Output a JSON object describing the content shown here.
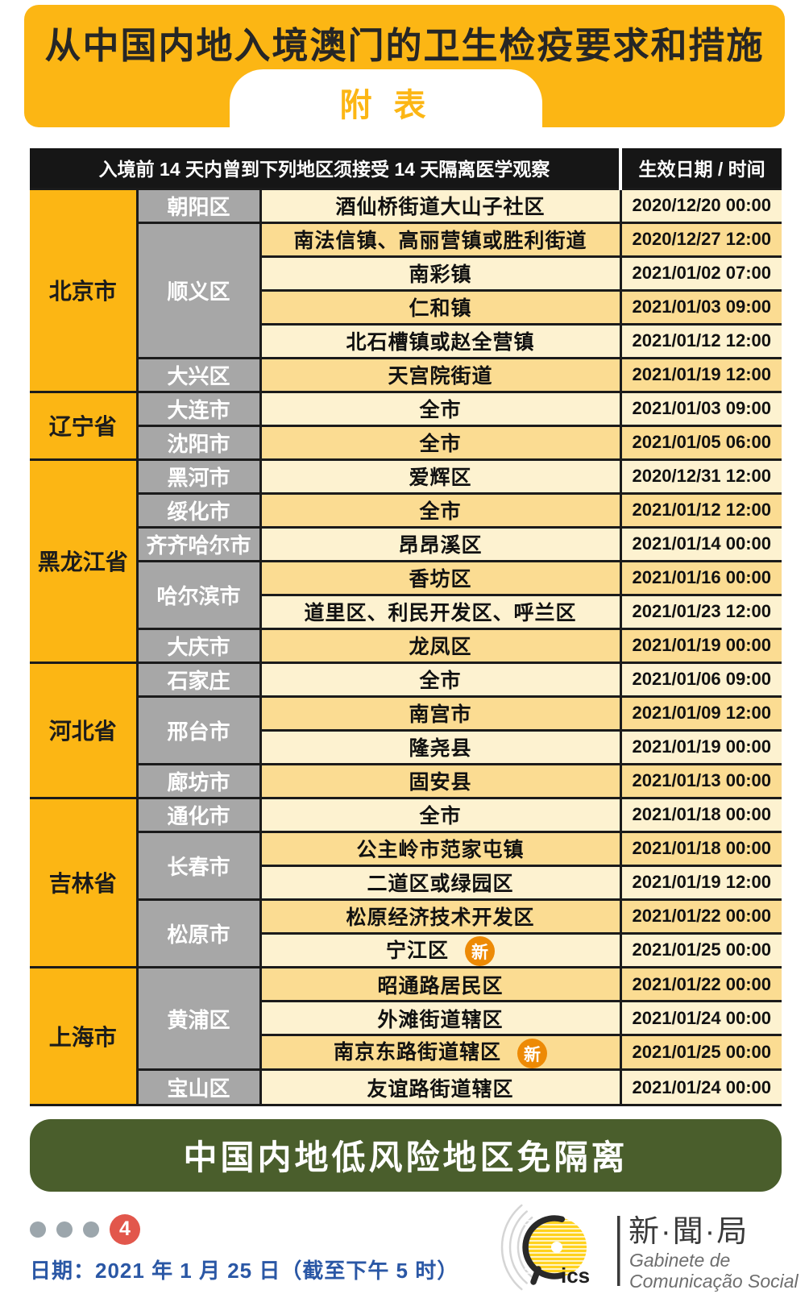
{
  "header": {
    "title": "从中国内地入境澳门的卫生检疫要求和措施",
    "tab_label": "附 表"
  },
  "table": {
    "header_left": "入境前 14 天内曾到下列地区须接受 14 天隔离医学观察",
    "header_right": "生效日期 / 时间",
    "new_badge_label": "新",
    "groups": [
      {
        "province": "北京市",
        "districts": [
          {
            "name": "朝阳区",
            "areas": [
              {
                "area": "酒仙桥街道大山子社区",
                "date": "2020/12/20 00:00"
              }
            ]
          },
          {
            "name": "顺义区",
            "areas": [
              {
                "area": "南法信镇、高丽营镇或胜利街道",
                "date": "2020/12/27 12:00"
              },
              {
                "area": "南彩镇",
                "date": "2021/01/02 07:00"
              },
              {
                "area": "仁和镇",
                "date": "2021/01/03 09:00"
              },
              {
                "area": "北石槽镇或赵全营镇",
                "date": "2021/01/12 12:00"
              }
            ]
          },
          {
            "name": "大兴区",
            "areas": [
              {
                "area": "天宫院街道",
                "date": "2021/01/19 12:00"
              }
            ]
          }
        ]
      },
      {
        "province": "辽宁省",
        "districts": [
          {
            "name": "大连市",
            "areas": [
              {
                "area": "全市",
                "date": "2021/01/03 09:00"
              }
            ]
          },
          {
            "name": "沈阳市",
            "areas": [
              {
                "area": "全市",
                "date": "2021/01/05 06:00"
              }
            ]
          }
        ]
      },
      {
        "province": "黑龙江省",
        "districts": [
          {
            "name": "黑河市",
            "areas": [
              {
                "area": "爱辉区",
                "date": "2020/12/31 12:00"
              }
            ]
          },
          {
            "name": "绥化市",
            "areas": [
              {
                "area": "全市",
                "date": "2021/01/12 12:00"
              }
            ]
          },
          {
            "name": "齐齐哈尔市",
            "areas": [
              {
                "area": "昂昂溪区",
                "date": "2021/01/14 00:00"
              }
            ]
          },
          {
            "name": "哈尔滨市",
            "areas": [
              {
                "area": "香坊区",
                "date": "2021/01/16 00:00"
              },
              {
                "area": "道里区、利民开发区、呼兰区",
                "date": "2021/01/23 12:00"
              }
            ]
          },
          {
            "name": "大庆市",
            "areas": [
              {
                "area": "龙凤区",
                "date": "2021/01/19 00:00"
              }
            ]
          }
        ]
      },
      {
        "province": "河北省",
        "districts": [
          {
            "name": "石家庄",
            "areas": [
              {
                "area": "全市",
                "date": "2021/01/06 09:00"
              }
            ]
          },
          {
            "name": "邢台市",
            "areas": [
              {
                "area": "南宫市",
                "date": "2021/01/09 12:00"
              },
              {
                "area": "隆尧县",
                "date": "2021/01/19 00:00"
              }
            ]
          },
          {
            "name": "廊坊市",
            "areas": [
              {
                "area": "固安县",
                "date": "2021/01/13 00:00"
              }
            ]
          }
        ]
      },
      {
        "province": "吉林省",
        "districts": [
          {
            "name": "通化市",
            "areas": [
              {
                "area": "全市",
                "date": "2021/01/18 00:00"
              }
            ]
          },
          {
            "name": "长春市",
            "areas": [
              {
                "area": "公主岭市范家屯镇",
                "date": "2021/01/18 00:00"
              },
              {
                "area": "二道区或绿园区",
                "date": "2021/01/19 12:00"
              }
            ]
          },
          {
            "name": "松原市",
            "areas": [
              {
                "area": "松原经济技术开发区",
                "date": "2021/01/22 00:00"
              },
              {
                "area": "宁江区",
                "date": "2021/01/25 00:00",
                "new": true
              }
            ]
          }
        ]
      },
      {
        "province": "上海市",
        "districts": [
          {
            "name": "黄浦区",
            "areas": [
              {
                "area": "昭通路居民区",
                "date": "2021/01/22 00:00"
              },
              {
                "area": "外滩街道辖区",
                "date": "2021/01/24 00:00"
              },
              {
                "area": "南京东路街道辖区",
                "date": "2021/01/25 00:00",
                "new": true
              }
            ]
          },
          {
            "name": "宝山区",
            "areas": [
              {
                "area": "友谊路街道辖区",
                "date": "2021/01/24 00:00"
              }
            ]
          }
        ]
      }
    ]
  },
  "banner": {
    "text": "中国内地低风险地区免隔离"
  },
  "footer": {
    "page_number": "4",
    "date_line": "日期：2021 年 1 月 25 日（截至下午 5 时）",
    "logo": {
      "acronym": "ics",
      "cn": "新·聞·局",
      "pt_line1": "Gabinete de",
      "pt_line2": "Comunicação Social"
    }
  },
  "colors": {
    "accent_yellow": "#FCB614",
    "row_light": "#FDF2D0",
    "row_dark": "#FBDC92",
    "district_gray": "#A7A7A7",
    "header_black": "#161616",
    "banner_green": "#4A5E2C",
    "badge_orange": "#ED8A05",
    "page_red": "#E2574C",
    "date_blue": "#2A57A5",
    "logo_yellow": "#FFD21E"
  }
}
